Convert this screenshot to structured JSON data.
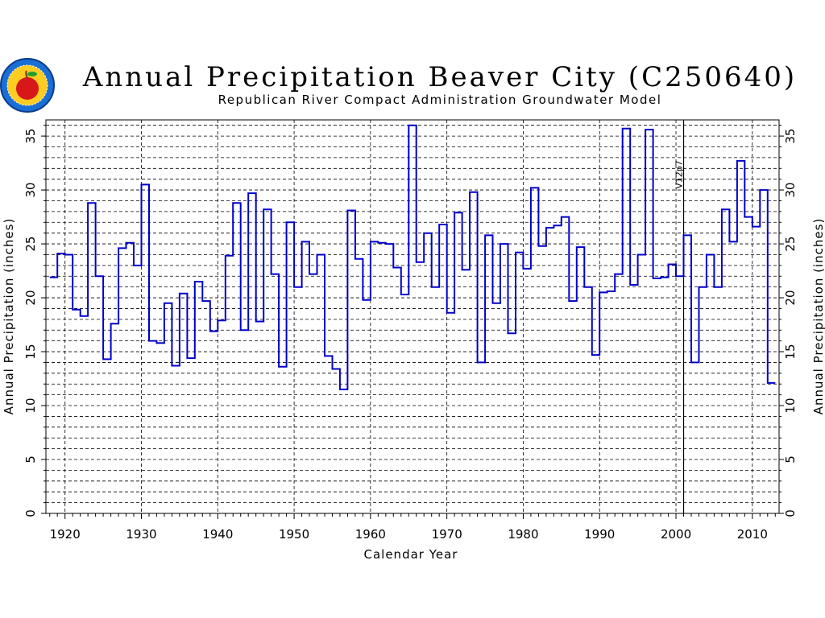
{
  "chart_data": {
    "type": "line",
    "step": true,
    "title": "Annual Precipitation Beaver City (C250640)",
    "subtitle": "Republican River Compact Administration Groundwater Model",
    "xlabel": "Calendar Year",
    "ylabel_left": "Annual Precipitation (inches)",
    "ylabel_right": "Annual Precipitation (inches)",
    "xlim": [
      1917.5,
      2013.5
    ],
    "ylim": [
      0,
      36.5
    ],
    "xticks": [
      1920,
      1930,
      1940,
      1950,
      1960,
      1970,
      1980,
      1990,
      2000,
      2010
    ],
    "yticks": [
      0,
      5,
      10,
      15,
      20,
      25,
      30,
      35
    ],
    "grid": true,
    "vline": {
      "x": 2001,
      "label": "V12p7"
    },
    "line_color": "#0000cc",
    "series": [
      {
        "x": [
          1918,
          1919,
          1920,
          1921,
          1922,
          1923,
          1924,
          1925,
          1926,
          1927,
          1928,
          1929,
          1930,
          1931,
          1932,
          1933,
          1934,
          1935,
          1936,
          1937,
          1938,
          1939,
          1940,
          1941,
          1942,
          1943,
          1944,
          1945,
          1946,
          1947,
          1948,
          1949,
          1950,
          1951,
          1952,
          1953,
          1954,
          1955,
          1956,
          1957,
          1958,
          1959,
          1960,
          1961,
          1962,
          1963,
          1964,
          1965,
          1966,
          1967,
          1968,
          1969,
          1970,
          1971,
          1972,
          1973,
          1974,
          1975,
          1976,
          1977,
          1978,
          1979,
          1980,
          1981,
          1982,
          1983,
          1984,
          1985,
          1986,
          1987,
          1988,
          1989,
          1990,
          1991,
          1992,
          1993,
          1994,
          1995,
          1996,
          1997,
          1998,
          1999,
          2000,
          2001,
          2002,
          2003,
          2004,
          2005,
          2006,
          2007,
          2008,
          2009,
          2010,
          2011,
          2012
        ],
        "values": [
          21.9,
          24.1,
          24.0,
          18.9,
          18.3,
          28.8,
          22.0,
          14.3,
          17.6,
          24.6,
          25.1,
          23.0,
          30.5,
          16.0,
          15.8,
          19.5,
          13.7,
          20.4,
          14.4,
          21.5,
          19.7,
          16.9,
          17.9,
          23.9,
          28.8,
          17.0,
          29.7,
          17.8,
          28.2,
          22.2,
          13.6,
          27.0,
          21.0,
          25.2,
          22.2,
          24.0,
          14.6,
          13.4,
          11.5,
          28.1,
          23.6,
          19.8,
          25.2,
          25.1,
          25.0,
          22.8,
          20.3,
          36.0,
          23.3,
          26.0,
          21.0,
          26.8,
          18.6,
          27.9,
          22.6,
          29.8,
          14.0,
          25.8,
          19.5,
          25.0,
          16.7,
          24.2,
          22.7,
          30.2,
          24.8,
          26.5,
          26.7,
          27.5,
          19.7,
          24.7,
          21.0,
          14.7,
          20.5,
          20.6,
          22.2,
          35.7,
          21.2,
          24.0,
          35.6,
          21.8,
          21.9,
          23.1,
          22.0,
          25.8,
          14.0,
          21.0,
          24.0,
          21.0,
          28.2,
          25.2,
          32.7,
          27.5,
          26.6,
          30.0,
          12.1
        ]
      }
    ]
  }
}
